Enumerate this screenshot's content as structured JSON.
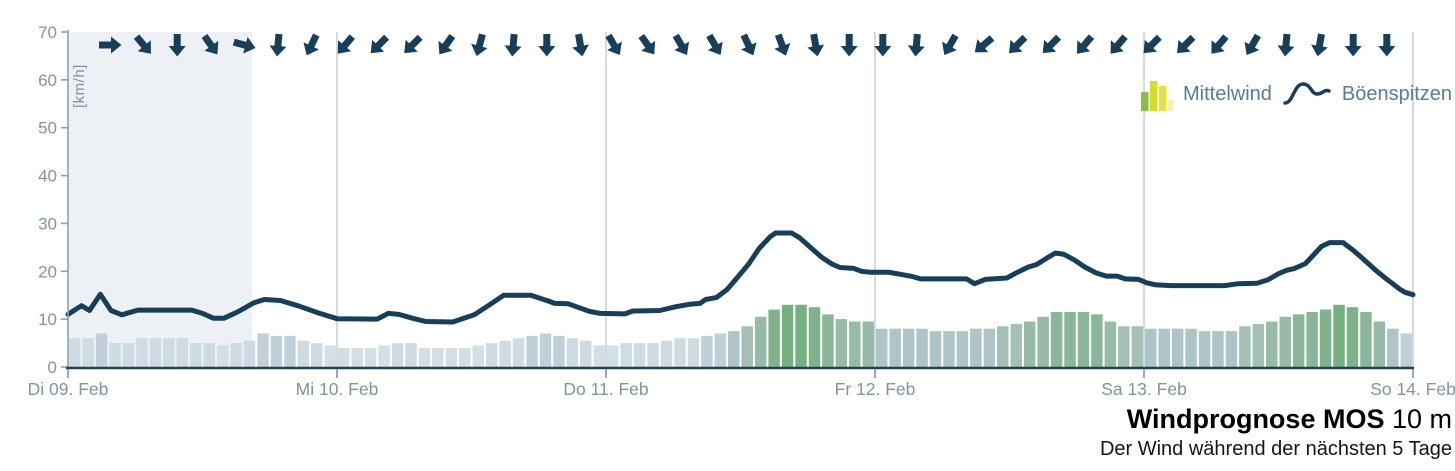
{
  "title": {
    "main": "Windprognose MOS",
    "suffix": " 10 m",
    "subtitle": "Der Wind während der nächsten 5 Tage"
  },
  "legend": {
    "mean_label": "Mittelwind",
    "gust_label": "Böenspitzen",
    "icon_bars": [
      {
        "h": 19,
        "color": "#8abd43"
      },
      {
        "h": 30,
        "color": "#d6dc28"
      },
      {
        "h": 25,
        "color": "#e4e43e"
      },
      {
        "h": 11,
        "color": "#f0f1b4"
      }
    ]
  },
  "colors": {
    "gust_line": "#173f5a",
    "arrow": "#173f5a",
    "axis_text": "#7d95a5",
    "y_axis_line": "#8ba1b1",
    "x_axis_line": "#1d4257",
    "gridline": "#b9c8d3",
    "past_shade": "#edf0f4"
  },
  "chart_data": {
    "type": "bar+line",
    "title": "Windprognose MOS 10 m",
    "subtitle": "Der Wind während der nächsten 5 Tage",
    "ylabel": "[km/h]",
    "ylim": [
      0,
      70
    ],
    "y_ticks": [
      0,
      10,
      20,
      30,
      40,
      50,
      60,
      70
    ],
    "x_day_labels": [
      "Di 09. Feb",
      "Mi 10. Feb",
      "Do 11. Feb",
      "Fr 12. Feb",
      "Sa 13. Feb",
      "So 14. Feb"
    ],
    "past_region_days": 0.685,
    "bar_series": {
      "name": "Mittelwind",
      "unit": "km/h",
      "values": [
        6,
        6,
        7,
        5,
        5,
        6,
        6,
        6,
        6,
        5,
        5,
        4.5,
        5,
        5.5,
        7,
        6.5,
        6.5,
        5.5,
        5,
        4.5,
        4,
        4,
        4,
        4.5,
        5,
        5,
        4,
        4,
        4,
        4,
        4.5,
        5,
        5.5,
        6,
        6.5,
        7,
        6.5,
        6,
        5.5,
        4.5,
        4.5,
        5,
        5,
        5,
        5.5,
        6,
        6,
        6.5,
        7,
        7.5,
        8.5,
        10.5,
        12,
        13,
        13,
        12.5,
        11,
        10,
        9.5,
        9.5,
        8,
        8,
        8,
        8,
        7.5,
        7.5,
        7.5,
        8,
        8,
        8.5,
        9,
        9.5,
        10.5,
        11.5,
        11.5,
        11.5,
        11,
        9.5,
        8.5,
        8.5,
        8,
        8,
        8,
        8,
        7.5,
        7.5,
        7.5,
        8.5,
        9,
        9.5,
        10.5,
        11,
        11.5,
        12,
        13,
        12.5,
        11.5,
        9.5,
        8,
        7
      ],
      "color_scale": [
        {
          "max": 4.6,
          "color": "#d3dee5"
        },
        {
          "max": 6.1,
          "color": "#cedbe2"
        },
        {
          "max": 7.1,
          "color": "#bfd0d8"
        },
        {
          "max": 8.2,
          "color": "#adc5c6"
        },
        {
          "max": 9.2,
          "color": "#a2c0b4"
        },
        {
          "max": 10.7,
          "color": "#97bba7"
        },
        {
          "max": 11.9,
          "color": "#8ab699"
        },
        {
          "max": 12.7,
          "color": "#7fb28b"
        },
        {
          "max": 999,
          "color": "#76b080"
        }
      ]
    },
    "line_series": {
      "name": "Böenspitzen",
      "unit": "km/h",
      "points_days_kmh": [
        [
          0,
          11
        ],
        [
          0.05,
          12.8
        ],
        [
          0.08,
          11.8
        ],
        [
          0.12,
          15.2
        ],
        [
          0.16,
          11.8
        ],
        [
          0.2,
          10.9
        ],
        [
          0.26,
          11.9
        ],
        [
          0.46,
          11.9
        ],
        [
          0.5,
          11.2
        ],
        [
          0.54,
          10.2
        ],
        [
          0.58,
          10.2
        ],
        [
          0.63,
          11.5
        ],
        [
          0.69,
          13.4
        ],
        [
          0.73,
          14.1
        ],
        [
          0.79,
          13.9
        ],
        [
          0.86,
          12.7
        ],
        [
          0.93,
          11.3
        ],
        [
          1.0,
          10.1
        ],
        [
          1.15,
          10
        ],
        [
          1.19,
          11.2
        ],
        [
          1.23,
          11
        ],
        [
          1.28,
          10.2
        ],
        [
          1.33,
          9.5
        ],
        [
          1.43,
          9.4
        ],
        [
          1.51,
          10.9
        ],
        [
          1.57,
          13.1
        ],
        [
          1.62,
          15
        ],
        [
          1.72,
          15
        ],
        [
          1.78,
          13.9
        ],
        [
          1.81,
          13.3
        ],
        [
          1.86,
          13.2
        ],
        [
          1.9,
          12.4
        ],
        [
          1.94,
          11.6
        ],
        [
          1.98,
          11.2
        ],
        [
          2.07,
          11.1
        ],
        [
          2.1,
          11.7
        ],
        [
          2.2,
          11.8
        ],
        [
          2.26,
          12.6
        ],
        [
          2.31,
          13.1
        ],
        [
          2.35,
          13.3
        ],
        [
          2.37,
          14.1
        ],
        [
          2.41,
          14.5
        ],
        [
          2.45,
          16.2
        ],
        [
          2.49,
          18.8
        ],
        [
          2.53,
          21.5
        ],
        [
          2.57,
          24.8
        ],
        [
          2.61,
          27.2
        ],
        [
          2.63,
          28
        ],
        [
          2.69,
          28
        ],
        [
          2.72,
          27
        ],
        [
          2.76,
          25
        ],
        [
          2.8,
          23
        ],
        [
          2.84,
          21.5
        ],
        [
          2.87,
          20.8
        ],
        [
          2.92,
          20.6
        ],
        [
          2.95,
          20
        ],
        [
          2.98,
          19.8
        ],
        [
          3.05,
          19.8
        ],
        [
          3.1,
          19.3
        ],
        [
          3.14,
          18.9
        ],
        [
          3.17,
          18.4
        ],
        [
          3.34,
          18.4
        ],
        [
          3.37,
          17.4
        ],
        [
          3.41,
          18.3
        ],
        [
          3.49,
          18.6
        ],
        [
          3.53,
          19.8
        ],
        [
          3.57,
          20.9
        ],
        [
          3.6,
          21.4
        ],
        [
          3.64,
          22.8
        ],
        [
          3.67,
          23.8
        ],
        [
          3.7,
          23.6
        ],
        [
          3.74,
          22.4
        ],
        [
          3.78,
          20.9
        ],
        [
          3.82,
          19.7
        ],
        [
          3.86,
          19
        ],
        [
          3.9,
          19
        ],
        [
          3.93,
          18.4
        ],
        [
          3.98,
          18.3
        ],
        [
          4.01,
          17.6
        ],
        [
          4.04,
          17.2
        ],
        [
          4.1,
          17
        ],
        [
          4.3,
          17
        ],
        [
          4.35,
          17.4
        ],
        [
          4.42,
          17.5
        ],
        [
          4.46,
          18.2
        ],
        [
          4.5,
          19.5
        ],
        [
          4.53,
          20.2
        ],
        [
          4.56,
          20.6
        ],
        [
          4.6,
          21.6
        ],
        [
          4.63,
          23.4
        ],
        [
          4.66,
          25.2
        ],
        [
          4.69,
          26
        ],
        [
          4.74,
          26
        ],
        [
          4.78,
          24.3
        ],
        [
          4.82,
          22.3
        ],
        [
          4.86,
          20.3
        ],
        [
          4.89,
          18.9
        ],
        [
          4.92,
          17.6
        ],
        [
          4.95,
          16.3
        ],
        [
          4.97,
          15.6
        ],
        [
          5,
          15.1
        ]
      ]
    },
    "wind_direction_arrows_deg": [
      0,
      50,
      90,
      55,
      15,
      95,
      115,
      130,
      135,
      135,
      125,
      105,
      95,
      90,
      80,
      60,
      55,
      60,
      60,
      65,
      70,
      80,
      90,
      90,
      95,
      120,
      140,
      135,
      135,
      130,
      130,
      135,
      135,
      130,
      120,
      95,
      100,
      90,
      90
    ]
  }
}
